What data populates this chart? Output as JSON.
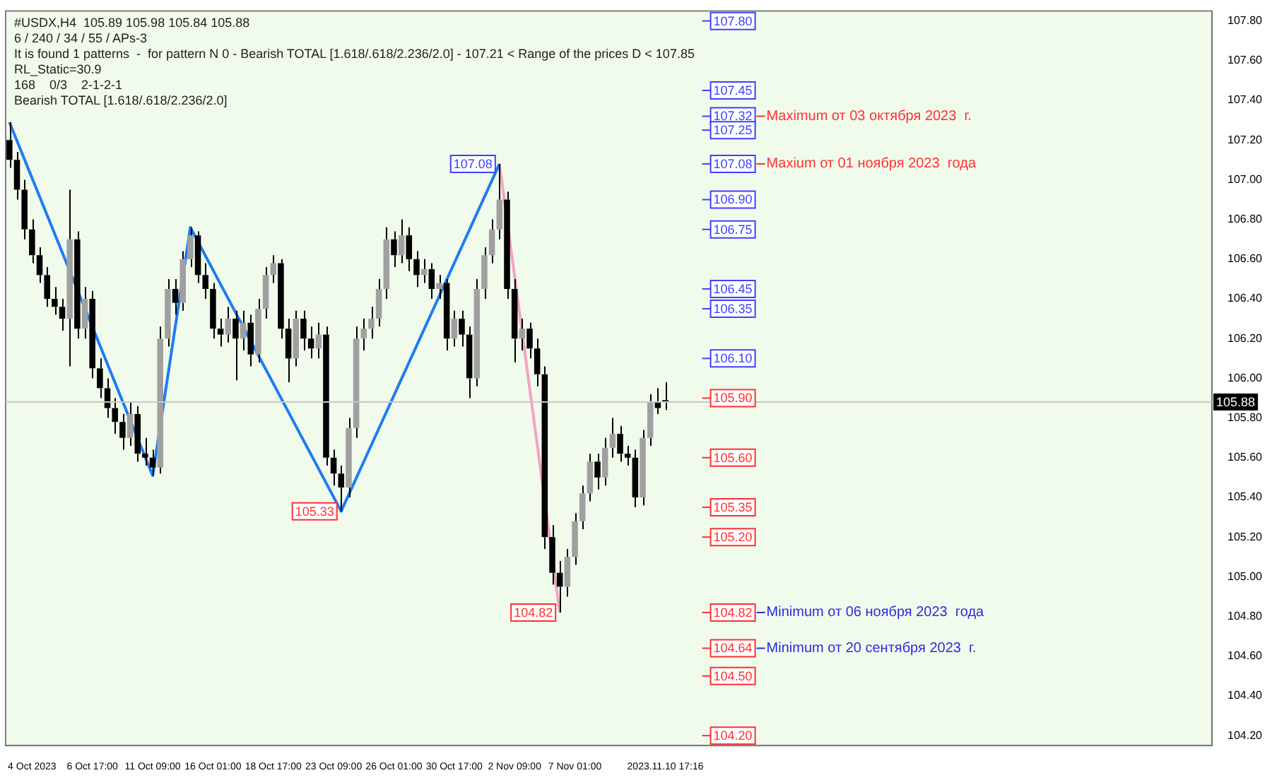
{
  "chart_data": {
    "type": "candlestick",
    "categories": [
      null,
      null,
      null,
      "4 Oct 2023",
      null,
      null,
      null,
      null,
      null,
      null,
      null,
      "6 Oct 17:00",
      null,
      null,
      null,
      null,
      null,
      null,
      null,
      "11 Oct 09:00",
      null,
      null,
      null,
      null,
      null,
      null,
      null,
      "16 Oct 01:00",
      null,
      null,
      null,
      null,
      null,
      null,
      null,
      "18 Oct 17:00",
      null,
      null,
      null,
      null,
      null,
      null,
      null,
      "23 Oct 09:00",
      null,
      null,
      null,
      null,
      null,
      null,
      null,
      "26 Oct 01:00",
      null,
      null,
      null,
      null,
      null,
      null,
      null,
      "30 Oct 17:00",
      null,
      null,
      null,
      null,
      null,
      null,
      null,
      "2 Nov 09:00",
      null,
      null,
      null,
      null,
      null,
      null,
      null,
      "7 Nov 01:00",
      null,
      null,
      null,
      null,
      null,
      null,
      null,
      null,
      null,
      null,
      null,
      "2023.11.10 17:16",
      null,
      null,
      null,
      null,
      null,
      null,
      null,
      null,
      null,
      null,
      null,
      null,
      null,
      null,
      null,
      null,
      null,
      null,
      null,
      null,
      null,
      null,
      null,
      null,
      null,
      null,
      null,
      null,
      null,
      null,
      null,
      null,
      null,
      null,
      null,
      null,
      null,
      null,
      null,
      null,
      null,
      null,
      null,
      null,
      null,
      null,
      null,
      null,
      null,
      null,
      null,
      null,
      null,
      null,
      null,
      null,
      null,
      null,
      null,
      null,
      null,
      null,
      null,
      null,
      null,
      null,
      null,
      null,
      null,
      null,
      null,
      null
    ],
    "ohlc": [
      [
        107.2,
        107.29,
        107.06,
        107.1
      ],
      [
        107.1,
        107.14,
        106.9,
        106.95
      ],
      [
        106.95,
        107.0,
        106.7,
        106.75
      ],
      [
        106.75,
        106.8,
        106.58,
        106.62
      ],
      [
        106.62,
        106.66,
        106.48,
        106.52
      ],
      [
        106.52,
        106.56,
        106.36,
        106.4
      ],
      [
        106.4,
        106.46,
        106.32,
        106.36
      ],
      [
        106.36,
        106.4,
        106.24,
        106.3
      ],
      [
        106.3,
        106.95,
        106.06,
        106.7
      ],
      [
        106.7,
        106.74,
        106.2,
        106.25
      ],
      [
        106.25,
        106.46,
        106.2,
        106.4
      ],
      [
        106.4,
        106.44,
        106.0,
        106.05
      ],
      [
        106.05,
        106.1,
        105.9,
        105.95
      ],
      [
        105.95,
        106.0,
        105.8,
        105.85
      ],
      [
        105.85,
        105.9,
        105.72,
        105.78
      ],
      [
        105.78,
        105.82,
        105.64,
        105.7
      ],
      [
        105.7,
        105.88,
        105.66,
        105.82
      ],
      [
        105.82,
        105.86,
        105.58,
        105.62
      ],
      [
        105.62,
        105.7,
        105.56,
        105.6
      ],
      [
        105.6,
        105.64,
        105.51,
        105.55
      ],
      [
        105.55,
        106.26,
        105.52,
        106.2
      ],
      [
        106.2,
        106.5,
        106.16,
        106.45
      ],
      [
        106.45,
        106.5,
        106.32,
        106.38
      ],
      [
        106.38,
        106.64,
        106.34,
        106.6
      ],
      [
        106.6,
        106.76,
        106.56,
        106.72
      ],
      [
        106.72,
        106.74,
        106.48,
        106.52
      ],
      [
        106.52,
        106.58,
        106.4,
        106.45
      ],
      [
        106.45,
        106.48,
        106.2,
        106.25
      ],
      [
        106.25,
        106.3,
        106.16,
        106.22
      ],
      [
        106.22,
        106.36,
        106.18,
        106.3
      ],
      [
        106.3,
        106.34,
        105.99,
        106.2
      ],
      [
        106.2,
        106.34,
        106.14,
        106.28
      ],
      [
        106.28,
        106.32,
        106.06,
        106.12
      ],
      [
        106.12,
        106.4,
        106.08,
        106.35
      ],
      [
        106.35,
        106.56,
        106.3,
        106.52
      ],
      [
        106.52,
        106.62,
        106.48,
        106.58
      ],
      [
        106.58,
        106.6,
        106.2,
        106.25
      ],
      [
        106.25,
        106.3,
        105.98,
        106.1
      ],
      [
        106.1,
        106.34,
        106.06,
        106.3
      ],
      [
        106.3,
        106.34,
        106.14,
        106.2
      ],
      [
        106.2,
        106.26,
        106.1,
        106.15
      ],
      [
        106.15,
        106.28,
        106.1,
        106.22
      ],
      [
        106.22,
        106.26,
        105.56,
        105.6
      ],
      [
        105.6,
        105.64,
        105.46,
        105.52
      ],
      [
        105.52,
        105.56,
        105.33,
        105.45
      ],
      [
        105.45,
        105.8,
        105.4,
        105.75
      ],
      [
        105.75,
        106.26,
        105.7,
        106.2
      ],
      [
        106.2,
        106.3,
        106.14,
        106.25
      ],
      [
        106.25,
        106.36,
        106.2,
        106.3
      ],
      [
        106.3,
        106.5,
        106.26,
        106.45
      ],
      [
        106.45,
        106.76,
        106.4,
        106.7
      ],
      [
        106.7,
        106.74,
        106.56,
        106.62
      ],
      [
        106.62,
        106.8,
        106.58,
        106.72
      ],
      [
        106.72,
        106.76,
        106.54,
        106.6
      ],
      [
        106.6,
        106.64,
        106.46,
        106.52
      ],
      [
        106.52,
        106.6,
        106.48,
        106.55
      ],
      [
        106.55,
        106.58,
        106.4,
        106.45
      ],
      [
        106.45,
        106.52,
        106.4,
        106.48
      ],
      [
        106.48,
        106.5,
        106.14,
        106.2
      ],
      [
        106.2,
        106.34,
        106.16,
        106.3
      ],
      [
        106.3,
        106.34,
        106.16,
        106.22
      ],
      [
        106.22,
        106.26,
        105.9,
        106.0
      ],
      [
        106.0,
        106.5,
        105.96,
        106.45
      ],
      [
        106.45,
        106.66,
        106.4,
        106.62
      ],
      [
        106.62,
        106.8,
        106.58,
        106.75
      ],
      [
        106.75,
        107.08,
        106.7,
        106.9
      ],
      [
        106.9,
        106.94,
        106.4,
        106.45
      ],
      [
        106.45,
        106.5,
        106.08,
        106.2
      ],
      [
        106.2,
        106.3,
        106.14,
        106.25
      ],
      [
        106.25,
        106.28,
        106.1,
        106.15
      ],
      [
        106.15,
        106.2,
        105.96,
        106.02
      ],
      [
        106.02,
        106.06,
        105.14,
        105.2
      ],
      [
        105.2,
        105.26,
        104.96,
        105.02
      ],
      [
        105.02,
        105.08,
        104.82,
        104.95
      ],
      [
        104.95,
        105.14,
        104.9,
        105.1
      ],
      [
        105.1,
        105.32,
        105.06,
        105.28
      ],
      [
        105.28,
        105.46,
        105.24,
        105.42
      ],
      [
        105.42,
        105.62,
        105.38,
        105.58
      ],
      [
        105.58,
        105.62,
        105.44,
        105.5
      ],
      [
        105.5,
        105.7,
        105.46,
        105.65
      ],
      [
        105.65,
        105.8,
        105.6,
        105.72
      ],
      [
        105.72,
        105.76,
        105.58,
        105.62
      ],
      [
        105.62,
        105.66,
        105.56,
        105.6
      ],
      [
        105.6,
        105.64,
        105.35,
        105.4
      ],
      [
        105.4,
        105.74,
        105.36,
        105.7
      ],
      [
        105.7,
        105.92,
        105.66,
        105.88
      ],
      [
        105.88,
        105.95,
        105.82,
        105.85
      ],
      [
        105.89,
        105.98,
        105.84,
        105.88
      ],
      null,
      null,
      null,
      null,
      null,
      null,
      null,
      null,
      null,
      null,
      null,
      null,
      null,
      null,
      null,
      null,
      null,
      null,
      null,
      null,
      null,
      null,
      null,
      null,
      null,
      null,
      null,
      null,
      null,
      null,
      null,
      null,
      null,
      null,
      null,
      null,
      null,
      null,
      null,
      null,
      null,
      null,
      null,
      null,
      null,
      null,
      null,
      null,
      null,
      null,
      null,
      null,
      null,
      null,
      null,
      null,
      null,
      null,
      null,
      null,
      null,
      null,
      null,
      null,
      null,
      null,
      null,
      null,
      null,
      null,
      null,
      null
    ],
    "series": [
      {
        "type": "line",
        "color": "#1e7cf0",
        "values": [
          107.29,
          null,
          null,
          null,
          null,
          null,
          null,
          null,
          null,
          null,
          null,
          null,
          null,
          null,
          null,
          null,
          null,
          null,
          null,
          105.51,
          null,
          null,
          null,
          null,
          106.76,
          null,
          null,
          null,
          null,
          null,
          null,
          null,
          null,
          null,
          null,
          null,
          null,
          null,
          null,
          null,
          null,
          null,
          null,
          null,
          105.33,
          null,
          null,
          null,
          null,
          null,
          null,
          null,
          null,
          null,
          null,
          null,
          null,
          null,
          null,
          null,
          null,
          null,
          null,
          null,
          null,
          107.08,
          null,
          null,
          null,
          null,
          null,
          null,
          null,
          null,
          null,
          null,
          null,
          null,
          null,
          null,
          null,
          null,
          null,
          null,
          null,
          null,
          null,
          null,
          null,
          null,
          null,
          null,
          null,
          null,
          null,
          null,
          null,
          null,
          null,
          null,
          null,
          null,
          null,
          null,
          null,
          null,
          null,
          null,
          null,
          null,
          null,
          null,
          null,
          null,
          null,
          null,
          null,
          null,
          null,
          null,
          null,
          null,
          null,
          null,
          null,
          null,
          null,
          null,
          null,
          null,
          null,
          null,
          null,
          null,
          null,
          null,
          null,
          null,
          null,
          null,
          null,
          null,
          null,
          null,
          null,
          null,
          null,
          null,
          null,
          null,
          null,
          null,
          null,
          null,
          null,
          null,
          null,
          null,
          null,
          null
        ],
        "value_labels": [
          null,
          null,
          null,
          null,
          null,
          null,
          null,
          null,
          null,
          null,
          null,
          null,
          null,
          null,
          null,
          null,
          null,
          null,
          null,
          null,
          null,
          null,
          null,
          null,
          null,
          null,
          null,
          null,
          null,
          null,
          null,
          null,
          null,
          null,
          null,
          null,
          null,
          null,
          null,
          null,
          null,
          null,
          null,
          null,
          "105.33",
          null,
          null,
          null,
          null,
          null,
          null,
          null,
          null,
          null,
          null,
          null,
          null,
          null,
          null,
          null,
          null,
          null,
          null,
          null,
          null,
          "107.08",
          null,
          null,
          null,
          null,
          null,
          null,
          null,
          null,
          null,
          null,
          null,
          null,
          null,
          null,
          null,
          null,
          null,
          null,
          null,
          null,
          null,
          null,
          null,
          null,
          null,
          null,
          null,
          null,
          null,
          null,
          null,
          null,
          null,
          null,
          null,
          null,
          null,
          null,
          null,
          null,
          null,
          null,
          null,
          null,
          null,
          null,
          null,
          null,
          null,
          null,
          null,
          null,
          null,
          null,
          null,
          null,
          null,
          null,
          null,
          null,
          null,
          null,
          null,
          null,
          null,
          null,
          null,
          null,
          null,
          null,
          null,
          null,
          null,
          null,
          null,
          null,
          null,
          null,
          null,
          null,
          null,
          null,
          null,
          null,
          null,
          null,
          null,
          null,
          null,
          null,
          null,
          null,
          null,
          null
        ]
      },
      {
        "type": "line",
        "color": "#f4a3c2",
        "values": [
          null,
          null,
          null,
          null,
          null,
          null,
          null,
          null,
          null,
          null,
          null,
          null,
          null,
          null,
          null,
          null,
          null,
          null,
          null,
          null,
          null,
          null,
          null,
          null,
          null,
          null,
          null,
          null,
          null,
          null,
          null,
          null,
          null,
          null,
          null,
          null,
          null,
          null,
          null,
          null,
          null,
          null,
          null,
          null,
          null,
          null,
          null,
          null,
          null,
          null,
          null,
          null,
          null,
          null,
          null,
          null,
          null,
          null,
          null,
          null,
          null,
          null,
          null,
          null,
          null,
          107.08,
          null,
          null,
          null,
          null,
          null,
          null,
          null,
          104.82,
          null,
          null,
          null,
          null,
          null,
          null,
          null,
          null,
          null,
          null,
          null,
          null,
          null,
          null,
          null,
          null,
          null,
          null,
          null,
          null,
          null,
          null,
          null,
          null,
          null,
          null,
          null,
          null,
          null,
          null,
          null,
          null,
          null,
          null,
          null,
          null,
          null,
          null,
          null,
          null,
          null,
          null,
          null,
          null,
          null,
          null,
          null,
          null,
          null,
          null,
          null,
          null,
          null,
          null,
          null,
          null,
          null,
          null,
          null,
          null,
          null,
          null,
          null,
          null,
          null,
          null,
          null,
          null,
          null,
          null,
          null,
          null,
          null,
          null,
          null,
          null,
          null,
          null,
          null,
          null,
          null,
          null,
          null,
          null,
          null,
          null
        ],
        "value_labels": [
          null,
          null,
          null,
          null,
          null,
          null,
          null,
          null,
          null,
          null,
          null,
          null,
          null,
          null,
          null,
          null,
          null,
          null,
          null,
          null,
          null,
          null,
          null,
          null,
          null,
          null,
          null,
          null,
          null,
          null,
          null,
          null,
          null,
          null,
          null,
          null,
          null,
          null,
          null,
          null,
          null,
          null,
          null,
          null,
          null,
          null,
          null,
          null,
          null,
          null,
          null,
          null,
          null,
          null,
          null,
          null,
          null,
          null,
          null,
          null,
          null,
          null,
          null,
          null,
          null,
          null,
          null,
          null,
          null,
          null,
          null,
          null,
          null,
          "104.82",
          null,
          null,
          null,
          null,
          null,
          null,
          null,
          null,
          null,
          null,
          null,
          null,
          null,
          null,
          null,
          null,
          null,
          null,
          null,
          null,
          null,
          null,
          null,
          null,
          null,
          null,
          null,
          null,
          null,
          null,
          null,
          null,
          null,
          null,
          null,
          null,
          null,
          null,
          null,
          null,
          null,
          null,
          null,
          null,
          null,
          null,
          null,
          null,
          null,
          null,
          null,
          null,
          null,
          null,
          null,
          null,
          null,
          null,
          null,
          null,
          null,
          null,
          null,
          null,
          null,
          null,
          null,
          null,
          null,
          null,
          null,
          null,
          null,
          null,
          null,
          null,
          null,
          null,
          null,
          null,
          null,
          null,
          null,
          null,
          null,
          null
        ]
      }
    ],
    "ylim": [
      104.15,
      107.85
    ],
    "yticks": [
      {
        "value": 104.2,
        "label": "104.20"
      },
      {
        "value": 104.4,
        "label": "104.40"
      },
      {
        "value": 104.6,
        "label": "104.60"
      },
      {
        "value": 104.8,
        "label": "104.80"
      },
      {
        "value": 105,
        "label": "105.00"
      },
      {
        "value": 105.2,
        "label": "105.20"
      },
      {
        "value": 105.4,
        "label": "105.40"
      },
      {
        "value": 105.6,
        "label": "105.60"
      },
      {
        "value": 105.8,
        "label": "105.80"
      },
      {
        "value": 106,
        "label": "106.00"
      },
      {
        "value": 106.2,
        "label": "106.20"
      },
      {
        "value": 106.4,
        "label": "106.40"
      },
      {
        "value": 106.6,
        "label": "106.60"
      },
      {
        "value": 106.8,
        "label": "106.80"
      },
      {
        "value": 107,
        "label": "107.00"
      },
      {
        "value": 107.2,
        "label": "107.20"
      },
      {
        "value": 107.4,
        "label": "107.40"
      },
      {
        "value": 107.6,
        "label": "107.60"
      },
      {
        "value": 107.8,
        "label": "107.80"
      }
    ],
    "ref_lines": [
      {
        "axis": "y",
        "value": 105.88,
        "label": "105.88",
        "color": "#c8c8c8",
        "line_style": "solid"
      },
      {
        "axis": "y",
        "value": 107.8,
        "label": "107.80",
        "color": "#4040ff"
      },
      {
        "axis": "y",
        "value": 107.45,
        "label": "107.45",
        "color": "#4040ff"
      },
      {
        "axis": "y",
        "value": 107.32,
        "label": "107.32",
        "color": "#4040ff"
      },
      {
        "axis": "y",
        "value": 107.32,
        "label": "Maximum от 03 октября 2023  г.",
        "color": "#ff3030"
      },
      {
        "axis": "y",
        "value": 107.25,
        "label": "107.25",
        "color": "#4040ff"
      },
      {
        "axis": "y",
        "value": 107.08,
        "label": "107.08",
        "color": "#4040ff"
      },
      {
        "axis": "y",
        "value": 107.08,
        "label": "Maxium от 01 ноября 2023  года",
        "color": "#ff3030"
      },
      {
        "axis": "y",
        "value": 106.9,
        "label": "106.90",
        "color": "#4040ff"
      },
      {
        "axis": "y",
        "value": 106.75,
        "label": "106.75",
        "color": "#4040ff"
      },
      {
        "axis": "y",
        "value": 106.45,
        "label": "106.45",
        "color": "#4040ff"
      },
      {
        "axis": "y",
        "value": 106.35,
        "label": "106.35",
        "color": "#4040ff"
      },
      {
        "axis": "y",
        "value": 106.1,
        "label": "106.10",
        "color": "#4040ff"
      },
      {
        "axis": "y",
        "value": 105.9,
        "label": "105.90",
        "color": "#ff3030"
      },
      {
        "axis": "y",
        "value": 105.6,
        "label": "105.60",
        "color": "#ff3030"
      },
      {
        "axis": "y",
        "value": 105.35,
        "label": "105.35",
        "color": "#ff3030"
      },
      {
        "axis": "y",
        "value": 105.2,
        "label": "105.20",
        "color": "#ff3030"
      },
      {
        "axis": "y",
        "value": 104.82,
        "label": "104.82",
        "color": "#ff3030"
      },
      {
        "axis": "y",
        "value": 104.82,
        "label": "Minimum от 06 ноября 2023  года",
        "color": "#2a2ae0"
      },
      {
        "axis": "y",
        "value": 104.64,
        "label": "104.64",
        "color": "#ff3030"
      },
      {
        "axis": "y",
        "value": 104.64,
        "label": "Minimum от 20 сентября 2023  г.",
        "color": "#2a2ae0"
      },
      {
        "axis": "y",
        "value": 104.5,
        "label": "104.50",
        "color": "#ff3030"
      },
      {
        "axis": "y",
        "value": 104.2,
        "label": "104.20",
        "color": "#ff3030"
      }
    ],
    "annotations": [
      "#USDX,H4  105.89 105.98 105.84 105.88",
      "6 / 240 / 34 / 55 / APs-3",
      "It is found 1 patterns  -  for pattern N 0 - Bearish TOTAL [1.618/.618/2.236/2.0] - 107.21 < Range of the prices D < 107.85",
      "RL_Static=30.9",
      "168    0/3    2-1-2-1",
      "Bearish TOTAL [1.618/.618/2.236/2.0]"
    ]
  }
}
